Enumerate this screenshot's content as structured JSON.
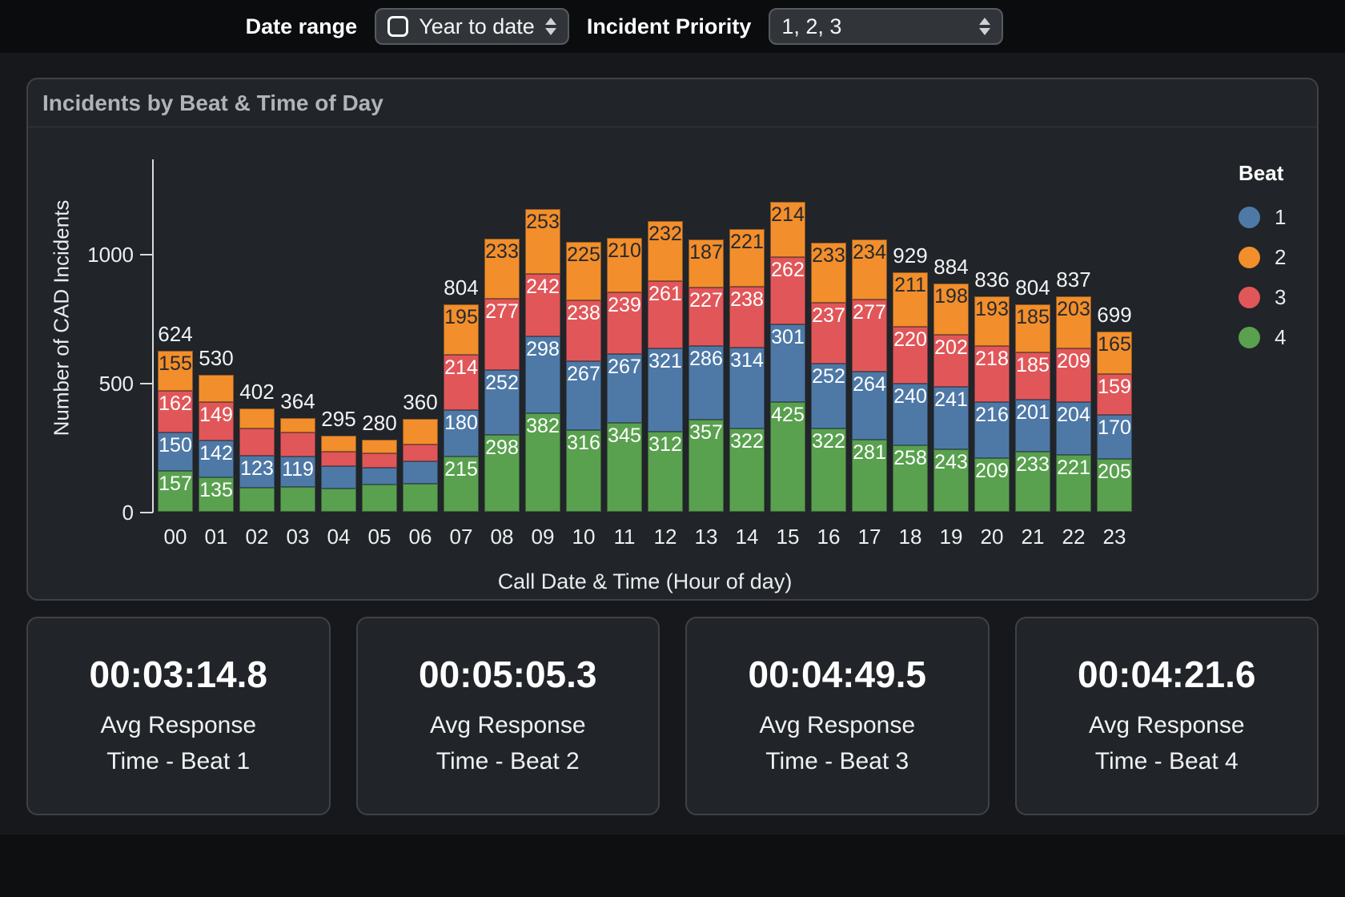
{
  "filters": {
    "date_range_label": "Date range",
    "date_range_value": "Year to date",
    "priority_label": "Incident Priority",
    "priority_value": "1, 2, 3",
    "icons": {
      "date_select": "calendar-icon",
      "select_caret": "up-down-arrows-icon"
    }
  },
  "panel": {
    "title": "Incidents by Beat & Time of Day"
  },
  "chart_data": {
    "type": "bar",
    "stacked": true,
    "title": "Incidents by Beat & Time of Day",
    "xlabel": "Call Date & Time (Hour of day)",
    "ylabel": "Number of CAD Incidents",
    "yticks": [
      0,
      500,
      1000
    ],
    "ylim": [
      0,
      1370
    ],
    "grid": false,
    "categories": [
      "00",
      "01",
      "02",
      "03",
      "04",
      "05",
      "06",
      "07",
      "08",
      "09",
      "10",
      "11",
      "12",
      "13",
      "14",
      "15",
      "16",
      "17",
      "18",
      "19",
      "20",
      "21",
      "22",
      "23"
    ],
    "series": [
      {
        "name": "1",
        "color": "#4e79a7",
        "values": [
          150,
          142,
          123,
          119,
          87,
          64,
          85,
          180,
          252,
          298,
          267,
          267,
          321,
          286,
          314,
          301,
          252,
          264,
          240,
          241,
          216,
          201,
          204,
          170
        ]
      },
      {
        "name": "2",
        "color": "#f28e2b",
        "values": [
          155,
          104,
          80,
          55,
          62,
          52,
          100,
          195,
          233,
          253,
          225,
          210,
          232,
          187,
          221,
          214,
          233,
          234,
          211,
          198,
          193,
          185,
          203,
          165
        ]
      },
      {
        "name": "3",
        "color": "#e15759",
        "values": [
          162,
          149,
          106,
          95,
          56,
          58,
          65,
          214,
          277,
          242,
          238,
          239,
          261,
          227,
          238,
          262,
          237,
          277,
          220,
          202,
          218,
          185,
          209,
          159
        ]
      },
      {
        "name": "4",
        "color": "#59a14f",
        "values": [
          157,
          135,
          93,
          95,
          90,
          106,
          110,
          215,
          298,
          382,
          316,
          345,
          312,
          357,
          322,
          425,
          322,
          281,
          258,
          243,
          209,
          233,
          221,
          205
        ]
      }
    ],
    "stack_order_bottom_to_top": [
      "4",
      "1",
      "3",
      "2"
    ],
    "totals": [
      624,
      530,
      402,
      364,
      295,
      280,
      360,
      804,
      1060,
      1175,
      1046,
      1061,
      1126,
      1057,
      1095,
      1202,
      1044,
      1056,
      929,
      884,
      836,
      804,
      837,
      699
    ],
    "show_total_when_below": 1000,
    "min_segment_label_value": 119,
    "dark_label_series": [
      "2"
    ],
    "legend": {
      "title": "Beat",
      "position": "right",
      "items": [
        {
          "label": "1",
          "color": "#4e79a7"
        },
        {
          "label": "2",
          "color": "#f28e2b"
        },
        {
          "label": "3",
          "color": "#e15759"
        },
        {
          "label": "4",
          "color": "#59a14f"
        }
      ]
    }
  },
  "cards": [
    {
      "value": "00:03:14.8",
      "label_line1": "Avg Response",
      "label_line2": "Time - Beat 1"
    },
    {
      "value": "00:05:05.3",
      "label_line1": "Avg Response",
      "label_line2": "Time - Beat 2"
    },
    {
      "value": "00:04:49.5",
      "label_line1": "Avg Response",
      "label_line2": "Time - Beat 3"
    },
    {
      "value": "00:04:21.6",
      "label_line1": "Avg Response",
      "label_line2": "Time - Beat 4"
    }
  ],
  "colors": {
    "page_bg": "#16181b",
    "topbar_bg": "#0a0c0e",
    "panel_bg": "#212428",
    "border": "#3e4146",
    "beat1": "#4e79a7",
    "beat2": "#f28e2b",
    "beat3": "#e15759",
    "beat4": "#59a14f"
  }
}
